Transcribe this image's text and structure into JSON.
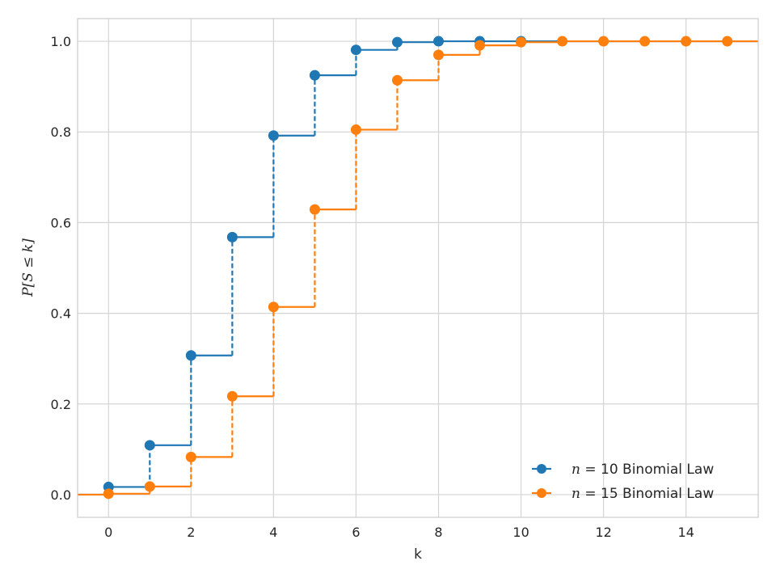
{
  "chart_data": {
    "type": "line",
    "subtype": "step-cdf",
    "title": "",
    "xlabel": "k",
    "ylabel": "P[S ≤ k]",
    "xlim": [
      -0.75,
      15.75
    ],
    "ylim": [
      -0.05,
      1.05
    ],
    "xticks": [
      0,
      2,
      4,
      6,
      8,
      10,
      12,
      14
    ],
    "yticks": [
      0.0,
      0.2,
      0.4,
      0.6,
      0.8,
      1.0
    ],
    "grid": true,
    "legend_position": "lower-right",
    "series": [
      {
        "name": "n = 10 Binomial Law",
        "color": "#1f77b4",
        "x": [
          0,
          1,
          2,
          3,
          4,
          5,
          6,
          7,
          8,
          9,
          10
        ],
        "y": [
          0.017,
          0.109,
          0.307,
          0.568,
          0.792,
          0.925,
          0.981,
          0.998,
          1.0,
          1.0,
          1.0
        ]
      },
      {
        "name": "n = 15 Binomial Law",
        "color": "#ff7f0e",
        "x": [
          0,
          1,
          2,
          3,
          4,
          5,
          6,
          7,
          8,
          9,
          10,
          11,
          12,
          13,
          14,
          15
        ],
        "y": [
          0.002,
          0.018,
          0.083,
          0.217,
          0.414,
          0.629,
          0.805,
          0.914,
          0.97,
          0.991,
          0.998,
          1.0,
          1.0,
          1.0,
          1.0,
          1.0
        ]
      }
    ]
  },
  "legend": {
    "items": [
      {
        "var": "n",
        "rest": " = 10 Binomial Law"
      },
      {
        "var": "n",
        "rest": " = 15 Binomial Law"
      }
    ]
  }
}
